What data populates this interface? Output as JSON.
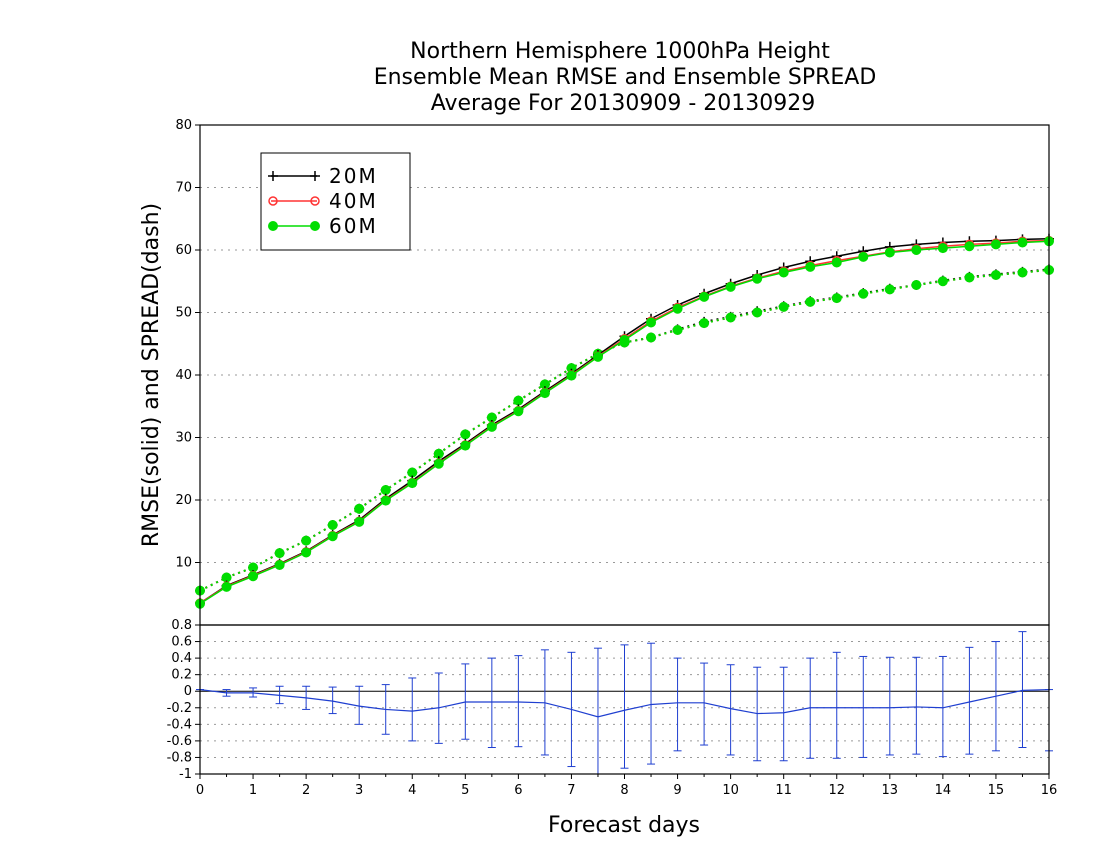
{
  "title_lines": [
    "Northern Hemisphere 1000hPa Height",
    "Ensemble Mean RMSE and Ensemble SPREAD",
    "Average For 20130909 - 20130929"
  ],
  "colors": {
    "c20M": "#000000",
    "c40M": "#ff3333",
    "c60M": "#00dd00",
    "diff": "#1f3fd0",
    "grid": "#9a9a9a"
  },
  "chart_data": [
    {
      "type": "line",
      "title": "Northern Hemisphere 1000hPa Height / Ensemble Mean RMSE and Ensemble SPREAD / Average For 20130909 - 20130929",
      "xlabel": "Forecast days",
      "ylabel": "RMSE(solid)  and  SPREAD(dash)",
      "xlim": [
        0,
        16
      ],
      "ylim": [
        0,
        80
      ],
      "grid": true,
      "legend_position": "top-left",
      "x_ticks": [
        0,
        1,
        2,
        3,
        4,
        5,
        6,
        7,
        8,
        9,
        10,
        11,
        12,
        13,
        14,
        15,
        16
      ],
      "y_ticks": [
        10,
        20,
        30,
        40,
        50,
        60,
        70,
        80
      ],
      "x": [
        0,
        0.5,
        1,
        1.5,
        2,
        2.5,
        3,
        3.5,
        4,
        4.5,
        5,
        5.5,
        6,
        6.5,
        7,
        7.5,
        8,
        8.5,
        9,
        9.5,
        10,
        10.5,
        11,
        11.5,
        12,
        12.5,
        13,
        13.5,
        14,
        14.5,
        15,
        15.5,
        16
      ],
      "series": [
        {
          "name": "20M",
          "kind": "rmse",
          "marker": "plus",
          "color": "#000000",
          "values": [
            3.5,
            6.3,
            8.0,
            9.8,
            11.8,
            14.4,
            16.8,
            20.2,
            23.1,
            26.2,
            29.0,
            32.0,
            34.5,
            37.4,
            40.2,
            43.2,
            46.2,
            49.0,
            51.2,
            53.0,
            54.6,
            56.0,
            57.2,
            58.2,
            59.0,
            59.8,
            60.5,
            60.9,
            61.2,
            61.4,
            61.5,
            61.7,
            61.8
          ]
        },
        {
          "name": "40M",
          "kind": "rmse",
          "marker": "circle",
          "color": "#ff3333",
          "values": [
            3.5,
            6.2,
            7.9,
            9.7,
            11.7,
            14.3,
            16.6,
            20.0,
            22.8,
            25.9,
            28.8,
            31.8,
            34.3,
            37.2,
            40.0,
            43.0,
            45.8,
            48.6,
            50.8,
            52.6,
            54.2,
            55.5,
            56.6,
            57.5,
            58.3,
            59.0,
            59.7,
            60.2,
            60.6,
            60.9,
            61.1,
            61.4,
            61.5
          ]
        },
        {
          "name": "60M",
          "kind": "rmse",
          "marker": "dot",
          "color": "#00dd00",
          "values": [
            3.4,
            6.1,
            7.8,
            9.6,
            11.6,
            14.2,
            16.5,
            19.9,
            22.7,
            25.8,
            28.7,
            31.7,
            34.2,
            37.1,
            39.9,
            42.9,
            45.6,
            48.4,
            50.6,
            52.5,
            54.1,
            55.4,
            56.4,
            57.3,
            58.0,
            58.9,
            59.6,
            60.0,
            60.3,
            60.6,
            60.9,
            61.2,
            61.4
          ]
        },
        {
          "name": "20M",
          "kind": "spread",
          "marker": "plus",
          "color": "#000000",
          "values": [
            5.5,
            7.6,
            9.2,
            11.5,
            13.5,
            16.0,
            18.6,
            21.6,
            24.4,
            27.4,
            30.5,
            33.2,
            35.9,
            38.5,
            41.1,
            43.4,
            45.2,
            46.0,
            47.3,
            48.5,
            49.3,
            50.2,
            51.0,
            51.8,
            52.4,
            53.1,
            53.8,
            54.4,
            55.1,
            55.7,
            56.1,
            56.5,
            56.9
          ]
        },
        {
          "name": "40M",
          "kind": "spread",
          "marker": "circle",
          "color": "#ff3333",
          "values": [
            5.5,
            7.6,
            9.2,
            11.5,
            13.5,
            16.0,
            18.6,
            21.6,
            24.4,
            27.4,
            30.5,
            33.2,
            35.9,
            38.5,
            41.1,
            43.4,
            45.2,
            46.0,
            47.2,
            48.3,
            49.2,
            50.0,
            50.9,
            51.7,
            52.3,
            53.0,
            53.7,
            54.4,
            55.0,
            55.6,
            56.0,
            56.4,
            56.8
          ]
        },
        {
          "name": "60M",
          "kind": "spread",
          "marker": "dot",
          "color": "#00dd00",
          "values": [
            5.5,
            7.6,
            9.2,
            11.5,
            13.5,
            16.0,
            18.6,
            21.6,
            24.4,
            27.4,
            30.5,
            33.2,
            35.9,
            38.5,
            41.1,
            43.4,
            45.2,
            46.0,
            47.2,
            48.3,
            49.2,
            50.0,
            50.9,
            51.7,
            52.3,
            53.0,
            53.7,
            54.4,
            55.0,
            55.6,
            56.0,
            56.4,
            56.8
          ]
        }
      ]
    },
    {
      "type": "line",
      "xlim": [
        0,
        16
      ],
      "ylim": [
        -1,
        0.8
      ],
      "grid": true,
      "x_ticks": [
        0,
        1,
        2,
        3,
        4,
        5,
        6,
        7,
        8,
        9,
        10,
        11,
        12,
        13,
        14,
        15,
        16
      ],
      "x_tick_labels": [
        "0",
        "1",
        "2",
        "3",
        "4",
        "5",
        "6",
        "7",
        "8",
        "9",
        "10",
        "11",
        "12",
        "13",
        "14",
        "15",
        "16"
      ],
      "y_ticks": [
        -1,
        -0.8,
        -0.6,
        -0.4,
        -0.2,
        0,
        0.2,
        0.4,
        0.6,
        0.8
      ],
      "y_tick_labels": [
        "-1",
        "-0.8",
        "-0.6",
        "-0.4",
        "-0.2",
        "0",
        "0.2",
        "0.4",
        "0.6",
        "0.8"
      ],
      "series": [
        {
          "kind": "difference_with_error_bars",
          "color": "#1f3fd0",
          "x": [
            0,
            0.5,
            1,
            1.5,
            2,
            2.5,
            3,
            3.5,
            4,
            4.5,
            5,
            5.5,
            6,
            6.5,
            7,
            7.5,
            8,
            8.5,
            9,
            9.5,
            10,
            10.5,
            11,
            11.5,
            12,
            12.5,
            13,
            13.5,
            14,
            14.5,
            15,
            15.5,
            16
          ],
          "values": [
            0.02,
            -0.02,
            -0.02,
            -0.05,
            -0.08,
            -0.12,
            -0.18,
            -0.22,
            -0.24,
            -0.2,
            -0.13,
            -0.13,
            -0.13,
            -0.14,
            -0.22,
            -0.31,
            -0.23,
            -0.16,
            -0.14,
            -0.14,
            -0.21,
            -0.27,
            -0.26,
            -0.2,
            -0.2,
            -0.2,
            -0.2,
            -0.19,
            -0.2,
            -0.13,
            -0.06,
            0.01,
            0.02
          ],
          "error_low": [
            0.02,
            -0.06,
            -0.07,
            -0.15,
            -0.22,
            -0.27,
            -0.4,
            -0.52,
            -0.6,
            -0.63,
            -0.58,
            -0.68,
            -0.67,
            -0.77,
            -0.91,
            -1.0,
            -0.93,
            -0.88,
            -0.72,
            -0.65,
            -0.77,
            -0.84,
            -0.84,
            -0.81,
            -0.81,
            -0.8,
            -0.77,
            -0.76,
            -0.79,
            -0.76,
            -0.72,
            -0.68,
            -0.72
          ],
          "error_high": [
            0.02,
            0.02,
            0.04,
            0.06,
            0.06,
            0.05,
            0.06,
            0.08,
            0.16,
            0.22,
            0.33,
            0.4,
            0.43,
            0.5,
            0.47,
            0.52,
            0.56,
            0.58,
            0.4,
            0.34,
            0.32,
            0.29,
            0.29,
            0.4,
            0.47,
            0.42,
            0.41,
            0.41,
            0.42,
            0.53,
            0.6,
            0.72,
            0.02
          ]
        }
      ]
    }
  ]
}
